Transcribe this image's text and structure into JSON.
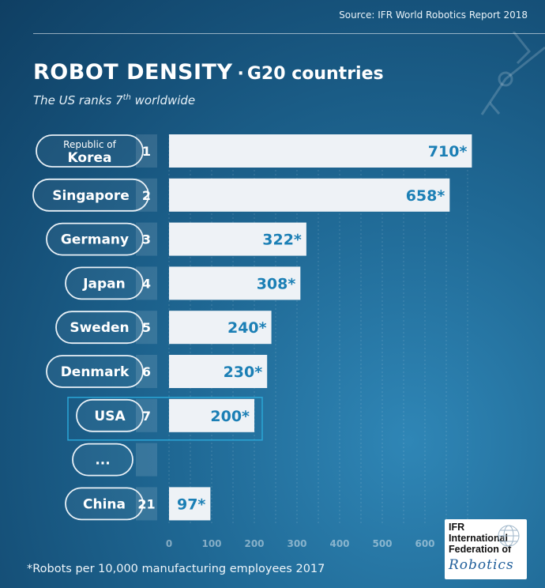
{
  "source": "Source: IFR World Robotics Report 2018",
  "title": {
    "main": "ROBOT DENSITY",
    "separator": "·",
    "sub": "G20 countries"
  },
  "subtitle": {
    "before": "The US ranks 7",
    "sup": "th",
    "after": " worldwide"
  },
  "footnote": "*Robots per 10,000 manufacturing employees 2017",
  "logo": {
    "line1": "IFR",
    "line2": "International",
    "line3": "Federation of",
    "line4": "Robotics"
  },
  "colors": {
    "bar": "#eef2f6",
    "value": "#1b7fb5",
    "pill_border": "#e8f0f6",
    "rank_box": "rgba(255,255,255,0.12)",
    "highlight": "#2aa6d6"
  },
  "chart_data": {
    "type": "bar",
    "orientation": "horizontal",
    "title": "ROBOT DENSITY · G20 countries",
    "subtitle": "The US ranks 7th worldwide",
    "categories": [
      {
        "name_lines": [
          "Republic of",
          "Korea"
        ],
        "rank": "1",
        "value": 710,
        "label": "710*"
      },
      {
        "name_lines": [
          "Singapore"
        ],
        "rank": "2",
        "value": 658,
        "label": "658*"
      },
      {
        "name_lines": [
          "Germany"
        ],
        "rank": "3",
        "value": 322,
        "label": "322*"
      },
      {
        "name_lines": [
          "Japan"
        ],
        "rank": "4",
        "value": 308,
        "label": "308*"
      },
      {
        "name_lines": [
          "Sweden"
        ],
        "rank": "5",
        "value": 240,
        "label": "240*"
      },
      {
        "name_lines": [
          "Denmark"
        ],
        "rank": "6",
        "value": 230,
        "label": "230*"
      },
      {
        "name_lines": [
          "USA"
        ],
        "rank": "7",
        "value": 200,
        "label": "200*",
        "highlight": true
      },
      {
        "name_lines": [
          "..."
        ],
        "rank": "",
        "value": null,
        "label": ""
      },
      {
        "name_lines": [
          "China"
        ],
        "rank": "21",
        "value": 97,
        "label": "97*"
      }
    ],
    "x_ticks": [
      "0",
      "100",
      "200",
      "300",
      "400",
      "500",
      "600"
    ],
    "xlim": [
      0,
      700
    ],
    "grid": true,
    "legend": "none"
  }
}
